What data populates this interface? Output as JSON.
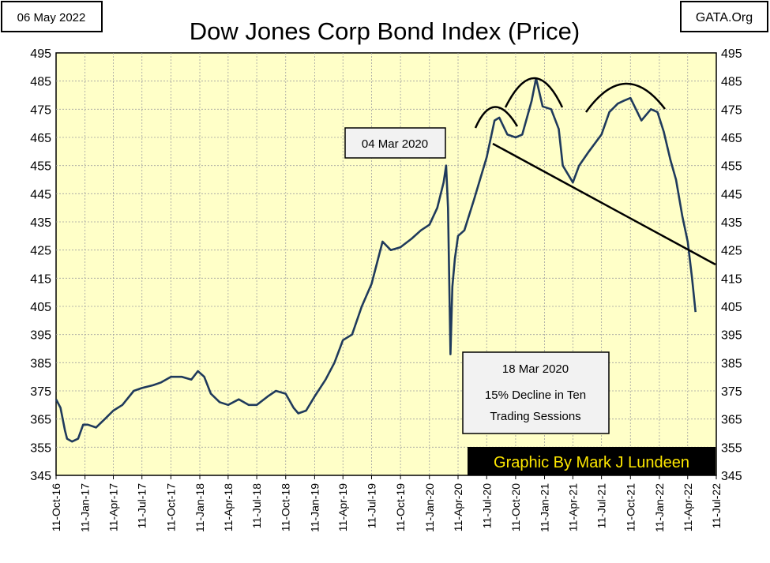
{
  "date_box": "06 May 2022",
  "source_box": "GATA.Org",
  "credit_box": "Graphic By Mark J Lundeen",
  "colors": {
    "plot_bg": "#FFFFC8",
    "line": "#1F3A5C",
    "grid": "#A0A0A0",
    "credit_bg": "#000000",
    "credit_text": "#FFE800",
    "annotation_bg": "#F2F2F2"
  },
  "chart_data": {
    "type": "line",
    "title": "Dow Jones Corp Bond Index (Price)",
    "xlabel": "",
    "ylabel": "",
    "ylim": [
      345,
      495
    ],
    "y_ticks": [
      345,
      355,
      365,
      375,
      385,
      395,
      405,
      415,
      425,
      435,
      445,
      455,
      465,
      475,
      485,
      495
    ],
    "x_ticks": [
      "11-Oct-16",
      "11-Jan-17",
      "11-Apr-17",
      "11-Jul-17",
      "11-Oct-17",
      "11-Jan-18",
      "11-Apr-18",
      "11-Jul-18",
      "11-Oct-18",
      "11-Jan-19",
      "11-Apr-19",
      "11-Jul-19",
      "11-Oct-19",
      "11-Jan-20",
      "11-Apr-20",
      "11-Jul-20",
      "11-Oct-20",
      "11-Jan-21",
      "11-Apr-21",
      "11-Jul-21",
      "11-Oct-21",
      "11-Jan-22",
      "11-Apr-22",
      "11-Jul-22"
    ],
    "xlim": [
      "2016-10-11",
      "2022-07-11"
    ],
    "grid": true,
    "series": [
      {
        "x": [
          "2016-10-11",
          "2016-10-25",
          "2016-11-08",
          "2016-11-15",
          "2016-12-01",
          "2016-12-20",
          "2017-01-05",
          "2017-01-20",
          "2017-02-15",
          "2017-03-15",
          "2017-04-11",
          "2017-05-10",
          "2017-06-15",
          "2017-07-11",
          "2017-08-15",
          "2017-09-10",
          "2017-10-11",
          "2017-11-15",
          "2017-12-15",
          "2018-01-05",
          "2018-01-25",
          "2018-02-15",
          "2018-03-15",
          "2018-04-11",
          "2018-05-15",
          "2018-06-15",
          "2018-07-11",
          "2018-08-15",
          "2018-09-10",
          "2018-10-11",
          "2018-11-05",
          "2018-11-20",
          "2018-12-15",
          "2019-01-11",
          "2019-02-15",
          "2019-03-15",
          "2019-04-11",
          "2019-05-10",
          "2019-06-10",
          "2019-07-11",
          "2019-08-15",
          "2019-09-10",
          "2019-10-11",
          "2019-11-15",
          "2019-12-15",
          "2020-01-11",
          "2020-02-05",
          "2020-02-25",
          "2020-03-04",
          "2020-03-10",
          "2020-03-18",
          "2020-03-24",
          "2020-04-01",
          "2020-04-11",
          "2020-05-01",
          "2020-06-01",
          "2020-07-11",
          "2020-08-05",
          "2020-08-20",
          "2020-09-15",
          "2020-10-11",
          "2020-11-01",
          "2020-12-01",
          "2020-12-15",
          "2021-01-05",
          "2021-02-01",
          "2021-02-25",
          "2021-03-10",
          "2021-04-11",
          "2021-05-01",
          "2021-06-01",
          "2021-07-11",
          "2021-08-05",
          "2021-09-01",
          "2021-09-20",
          "2021-10-11",
          "2021-11-15",
          "2021-12-15",
          "2022-01-05",
          "2022-01-25",
          "2022-02-15",
          "2022-03-05",
          "2022-03-25",
          "2022-04-11",
          "2022-04-25",
          "2022-05-06"
        ],
        "values": [
          372,
          369,
          361,
          358,
          357,
          358,
          363,
          363,
          362,
          365,
          368,
          370,
          375,
          376,
          377,
          378,
          380,
          380,
          379,
          382,
          380,
          374,
          371,
          370,
          372,
          370,
          370,
          373,
          375,
          374,
          369,
          367,
          368,
          373,
          379,
          385,
          393,
          395,
          405,
          413,
          428,
          425,
          426,
          429,
          432,
          434,
          440,
          449,
          455,
          440,
          388,
          412,
          422,
          430,
          432,
          443,
          458,
          471,
          472,
          466,
          465,
          466,
          478,
          486,
          476,
          475,
          468,
          455,
          449,
          455,
          460,
          466,
          474,
          477,
          478,
          479,
          471,
          475,
          474,
          467,
          457,
          450,
          437,
          428,
          415,
          403
        ]
      }
    ],
    "annotations": [
      {
        "text": "04 Mar 2020"
      },
      {
        "lines": [
          "18 Mar 2020",
          "15% Decline in Ten",
          "Trading Sessions"
        ]
      }
    ]
  }
}
